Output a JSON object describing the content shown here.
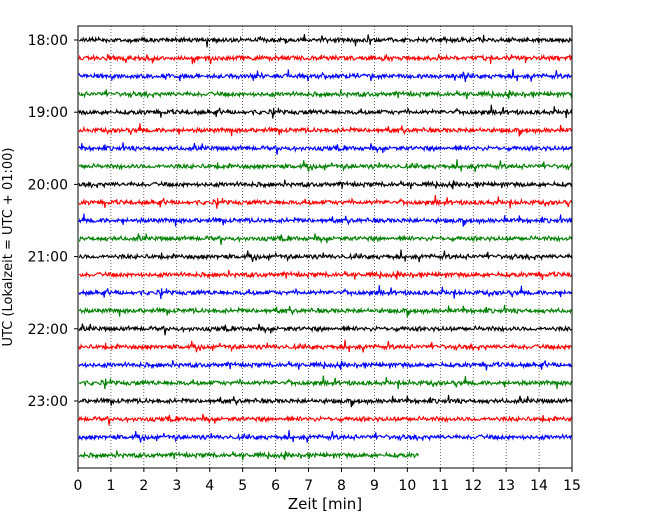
{
  "chart_data": {
    "type": "line",
    "xlabel": "Zeit  [min]",
    "ylabel": "UTC (Lokalzeit = UTC + 01:00)",
    "xlim": [
      0,
      15
    ],
    "x_ticks": [
      0,
      1,
      2,
      3,
      4,
      5,
      6,
      7,
      8,
      9,
      10,
      11,
      12,
      13,
      14,
      15
    ],
    "grid": "vertical dotted",
    "y_tick_labels": [
      "18:00",
      "19:00",
      "20:00",
      "21:00",
      "22:00",
      "23:00"
    ],
    "trace_interval_min": 15,
    "trace_start": "18:00",
    "colors": [
      "#000000",
      "#ff0000",
      "#0000ff",
      "#008000"
    ],
    "traces": [
      {
        "start": "18:00",
        "color": "#000000",
        "end_min": 15
      },
      {
        "start": "18:15",
        "color": "#ff0000",
        "end_min": 15
      },
      {
        "start": "18:30",
        "color": "#0000ff",
        "end_min": 15
      },
      {
        "start": "18:45",
        "color": "#008000",
        "end_min": 15
      },
      {
        "start": "19:00",
        "color": "#000000",
        "end_min": 15
      },
      {
        "start": "19:15",
        "color": "#ff0000",
        "end_min": 15
      },
      {
        "start": "19:30",
        "color": "#0000ff",
        "end_min": 15
      },
      {
        "start": "19:45",
        "color": "#008000",
        "end_min": 15
      },
      {
        "start": "20:00",
        "color": "#000000",
        "end_min": 15
      },
      {
        "start": "20:15",
        "color": "#ff0000",
        "end_min": 15
      },
      {
        "start": "20:30",
        "color": "#0000ff",
        "end_min": 15
      },
      {
        "start": "20:45",
        "color": "#008000",
        "end_min": 15
      },
      {
        "start": "21:00",
        "color": "#000000",
        "end_min": 15
      },
      {
        "start": "21:15",
        "color": "#ff0000",
        "end_min": 15
      },
      {
        "start": "21:30",
        "color": "#0000ff",
        "end_min": 15
      },
      {
        "start": "21:45",
        "color": "#008000",
        "end_min": 15
      },
      {
        "start": "22:00",
        "color": "#000000",
        "end_min": 15
      },
      {
        "start": "22:15",
        "color": "#ff0000",
        "end_min": 15
      },
      {
        "start": "22:30",
        "color": "#0000ff",
        "end_min": 15
      },
      {
        "start": "22:45",
        "color": "#008000",
        "end_min": 15
      },
      {
        "start": "23:00",
        "color": "#000000",
        "end_min": 15
      },
      {
        "start": "23:15",
        "color": "#ff0000",
        "end_min": 15
      },
      {
        "start": "23:30",
        "color": "#0000ff",
        "end_min": 15
      },
      {
        "start": "23:45",
        "color": "#008000",
        "end_min": 10.35
      }
    ]
  }
}
